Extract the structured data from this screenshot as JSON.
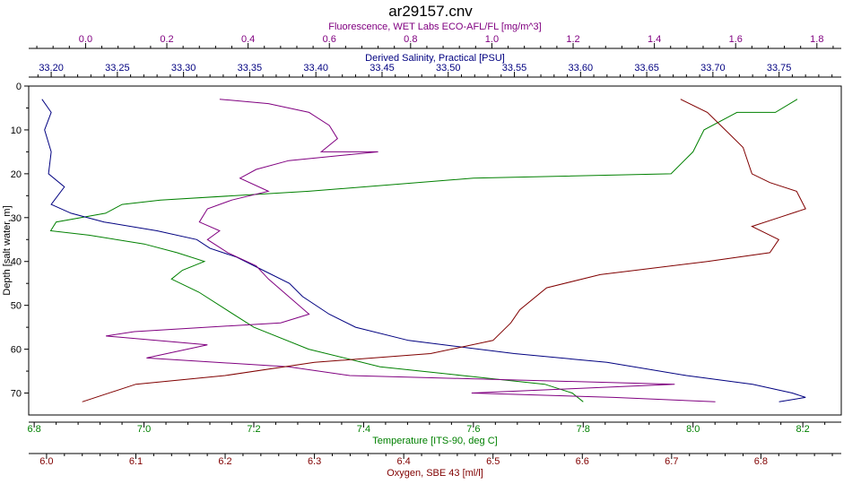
{
  "chart_data": {
    "type": "line",
    "title": "ar29157.cnv",
    "ylabel": "Depth [salt water, m]",
    "y_reversed": true,
    "ylim": [
      0,
      75
    ],
    "y_ticks": [
      0,
      10,
      20,
      30,
      40,
      50,
      60,
      70
    ],
    "grid": false,
    "legend": "none",
    "axes": [
      {
        "id": "fluorescence",
        "label": "Fluorescence, WET Labs ECO-AFL/FL [mg/m^3]",
        "position": "top-outer",
        "color": "#800080",
        "range": [
          -0.14,
          1.86
        ],
        "ticks": [
          "0.0",
          "0.2",
          "0.4",
          "0.6",
          "0.8",
          "1.0",
          "1.2",
          "1.4",
          "1.6",
          "1.8"
        ]
      },
      {
        "id": "salinity",
        "label": "Derived Salinity, Practical [PSU]",
        "position": "top-inner",
        "color": "#000080",
        "range": [
          33.183,
          33.797
        ],
        "ticks": [
          "33.20",
          "33.25",
          "33.30",
          "33.35",
          "33.40",
          "33.45",
          "33.50",
          "33.55",
          "33.60",
          "33.65",
          "33.70",
          "33.75"
        ]
      },
      {
        "id": "temperature",
        "label": "Temperature [ITS-90, deg C]",
        "position": "bottom-inner",
        "color": "#008000",
        "range": [
          6.79,
          8.27
        ],
        "ticks": [
          "6.8",
          "7.0",
          "7.2",
          "7.4",
          "7.6",
          "7.8",
          "8.0",
          "8.2"
        ]
      },
      {
        "id": "oxygen",
        "label": "Oxygen, SBE 43 [ml/l]",
        "position": "bottom-outer",
        "color": "#800000",
        "range": [
          5.98,
          6.89
        ],
        "ticks": [
          "6.0",
          "6.1",
          "6.2",
          "6.3",
          "6.4",
          "6.5",
          "6.6",
          "6.7",
          "6.8"
        ]
      }
    ],
    "series": [
      {
        "axis": "temperature",
        "color": "#008000",
        "points": [
          [
            8.19,
            3
          ],
          [
            8.15,
            6
          ],
          [
            8.08,
            6
          ],
          [
            8.02,
            10
          ],
          [
            8.0,
            15
          ],
          [
            7.96,
            20
          ],
          [
            7.6,
            21
          ],
          [
            7.3,
            24
          ],
          [
            7.03,
            26
          ],
          [
            6.96,
            27
          ],
          [
            6.93,
            29
          ],
          [
            6.84,
            31
          ],
          [
            6.83,
            33
          ],
          [
            6.9,
            34
          ],
          [
            7.0,
            36
          ],
          [
            7.06,
            38
          ],
          [
            7.11,
            40
          ],
          [
            7.07,
            42
          ],
          [
            7.05,
            44
          ],
          [
            7.1,
            47
          ],
          [
            7.15,
            51
          ],
          [
            7.2,
            55
          ],
          [
            7.3,
            60
          ],
          [
            7.43,
            64
          ],
          [
            7.58,
            66
          ],
          [
            7.73,
            68
          ],
          [
            7.78,
            70
          ],
          [
            7.8,
            72
          ]
        ]
      },
      {
        "axis": "salinity",
        "color": "#000080",
        "points": [
          [
            33.193,
            3
          ],
          [
            33.2,
            6
          ],
          [
            33.195,
            10
          ],
          [
            33.2,
            15
          ],
          [
            33.198,
            20
          ],
          [
            33.21,
            23
          ],
          [
            33.2,
            27
          ],
          [
            33.215,
            29
          ],
          [
            33.24,
            31
          ],
          [
            33.28,
            33
          ],
          [
            33.31,
            35
          ],
          [
            33.32,
            37
          ],
          [
            33.34,
            39
          ],
          [
            33.36,
            42
          ],
          [
            33.38,
            45
          ],
          [
            33.39,
            48
          ],
          [
            33.41,
            52
          ],
          [
            33.43,
            55
          ],
          [
            33.47,
            58
          ],
          [
            33.55,
            61
          ],
          [
            33.62,
            63
          ],
          [
            33.68,
            66
          ],
          [
            33.73,
            68
          ],
          [
            33.76,
            70
          ],
          [
            33.77,
            71
          ],
          [
            33.75,
            72
          ]
        ]
      },
      {
        "axis": "fluorescence",
        "color": "#800080",
        "points": [
          [
            0.33,
            3
          ],
          [
            0.45,
            4
          ],
          [
            0.55,
            6
          ],
          [
            0.6,
            9
          ],
          [
            0.62,
            12
          ],
          [
            0.58,
            15
          ],
          [
            0.72,
            15
          ],
          [
            0.5,
            17
          ],
          [
            0.42,
            19
          ],
          [
            0.38,
            21
          ],
          [
            0.45,
            24
          ],
          [
            0.36,
            26
          ],
          [
            0.3,
            28
          ],
          [
            0.28,
            31
          ],
          [
            0.33,
            33
          ],
          [
            0.3,
            35
          ],
          [
            0.35,
            38
          ],
          [
            0.42,
            41
          ],
          [
            0.45,
            44
          ],
          [
            0.5,
            48
          ],
          [
            0.55,
            52
          ],
          [
            0.48,
            54
          ],
          [
            0.12,
            56
          ],
          [
            0.05,
            57
          ],
          [
            0.3,
            59
          ],
          [
            0.15,
            62
          ],
          [
            0.5,
            64
          ],
          [
            0.65,
            66
          ],
          [
            1.45,
            68
          ],
          [
            1.2,
            69
          ],
          [
            0.95,
            70
          ],
          [
            1.3,
            71
          ],
          [
            1.55,
            72
          ]
        ]
      },
      {
        "axis": "oxygen",
        "color": "#800000",
        "points": [
          [
            6.71,
            3
          ],
          [
            6.74,
            6
          ],
          [
            6.76,
            10
          ],
          [
            6.78,
            14
          ],
          [
            6.79,
            20
          ],
          [
            6.81,
            22
          ],
          [
            6.84,
            24
          ],
          [
            6.85,
            28
          ],
          [
            6.82,
            30
          ],
          [
            6.79,
            32
          ],
          [
            6.82,
            35
          ],
          [
            6.81,
            38
          ],
          [
            6.74,
            40
          ],
          [
            6.62,
            43
          ],
          [
            6.56,
            46
          ],
          [
            6.53,
            51
          ],
          [
            6.52,
            54
          ],
          [
            6.5,
            58
          ],
          [
            6.43,
            61
          ],
          [
            6.3,
            63
          ],
          [
            6.2,
            66
          ],
          [
            6.1,
            68
          ],
          [
            6.04,
            72
          ]
        ]
      }
    ]
  }
}
